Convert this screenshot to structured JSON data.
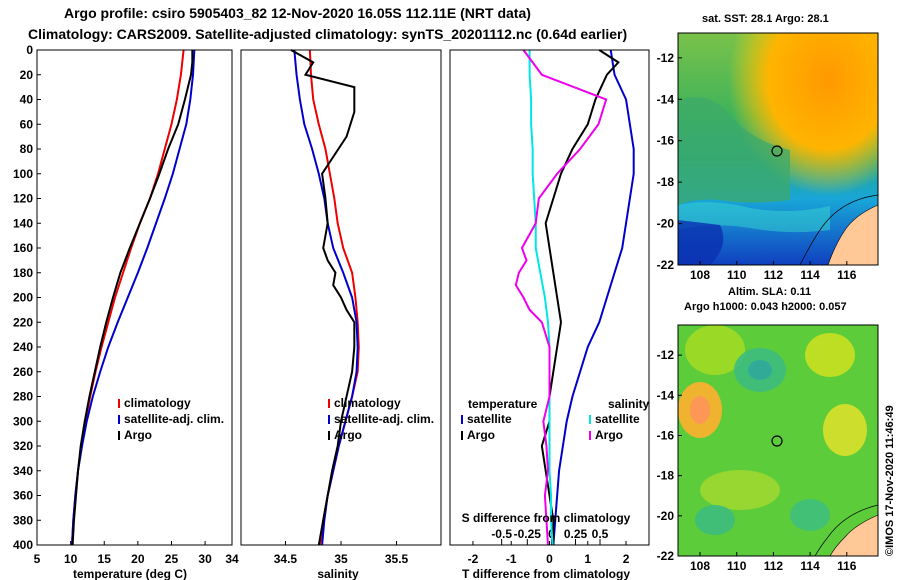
{
  "titles": {
    "line1": "Argo profile: csiro 5905403_82 12-Nov-2020 16.05S 112.11E (NRT data)",
    "line2": "Climatology: CARS2009. Satellite-adjusted climatology: synTS_20201112.nc (0.64d earlier)"
  },
  "map_titles": {
    "sst": "sat. SST: 28.1 Argo: 28.1",
    "sla1": "Altim. SLA: 0.11",
    "sla2": "Argo h1000: 0.043 h2000: 0.057"
  },
  "watermark": "©IMOS 17-Nov-2020 11:46:49",
  "colors": {
    "climatology": "#ee0000",
    "satellite": "#0000cc",
    "argo": "#000000",
    "sat_salinity": "#00e5e5",
    "argo_salinity": "#ee00ee"
  },
  "chart_data": [
    {
      "type": "line",
      "title": "temperature profile",
      "xlabel": "temperature (deg C)",
      "xlim": [
        5,
        34
      ],
      "ylim": [
        400,
        0
      ],
      "xticks": [
        "5",
        "10",
        "15",
        "20",
        "25",
        "30",
        "34"
      ],
      "yticks": [
        "0",
        "20",
        "40",
        "60",
        "80",
        "100",
        "120",
        "140",
        "160",
        "180",
        "200",
        "220",
        "240",
        "260",
        "280",
        "300",
        "320",
        "340",
        "360",
        "380",
        "400"
      ],
      "legend": [
        "climatology",
        "satellite-adj. clim.",
        "Argo"
      ],
      "series": [
        {
          "name": "climatology",
          "depth": [
            0,
            20,
            40,
            60,
            80,
            100,
            120,
            140,
            160,
            180,
            200,
            220,
            240,
            260,
            280,
            300,
            320,
            340,
            360,
            380,
            400
          ],
          "values": [
            26.8,
            26.4,
            25.8,
            25,
            24,
            23,
            21.8,
            20.3,
            19,
            17.8,
            16.6,
            15.6,
            14.6,
            13.7,
            12.9,
            12.2,
            11.6,
            11.1,
            10.7,
            10.4,
            10.2
          ]
        },
        {
          "name": "satellite-adj. clim.",
          "depth": [
            0,
            20,
            40,
            60,
            80,
            100,
            120,
            140,
            160,
            180,
            200,
            220,
            240,
            260,
            280,
            300,
            320,
            340,
            360,
            380,
            400
          ],
          "values": [
            28.4,
            28.2,
            27.8,
            27.2,
            26.2,
            25.2,
            24,
            22.7,
            21.4,
            20,
            18.5,
            17,
            15.6,
            14.4,
            13.3,
            12.4,
            11.7,
            11.1,
            10.7,
            10.4,
            10.2
          ]
        },
        {
          "name": "Argo",
          "depth": [
            0,
            10,
            20,
            40,
            60,
            80,
            100,
            120,
            140,
            160,
            180,
            200,
            220,
            240,
            260,
            280,
            300,
            320,
            340,
            360,
            380,
            400
          ],
          "values": [
            28.1,
            28.1,
            27.9,
            27,
            26,
            24.5,
            23.2,
            21.8,
            20.3,
            18.8,
            17.4,
            16.3,
            15.3,
            14.4,
            13.6,
            12.8,
            12.1,
            11.5,
            11.1,
            10.8,
            10.5,
            10.3
          ]
        }
      ]
    },
    {
      "type": "line",
      "title": "salinity profile",
      "xlabel": "salinity",
      "xlim": [
        34.1,
        35.9
      ],
      "ylim": [
        400,
        0
      ],
      "xticks": [
        "34.5",
        "35",
        "35.5"
      ],
      "legend": [
        "climatology",
        "satellite-adj. clim.",
        "Argo"
      ],
      "series": [
        {
          "name": "climatology",
          "depth": [
            0,
            20,
            40,
            60,
            80,
            100,
            120,
            140,
            160,
            180,
            200,
            220,
            240,
            260,
            280,
            300,
            320,
            340,
            360,
            380,
            400
          ],
          "values": [
            34.72,
            34.73,
            34.75,
            34.8,
            34.86,
            34.9,
            34.94,
            34.97,
            35.02,
            35.1,
            35.13,
            35.15,
            35.16,
            35.15,
            35.1,
            35.04,
            34.98,
            34.93,
            34.88,
            34.84,
            34.81
          ]
        },
        {
          "name": "satellite-adj. clim.",
          "depth": [
            0,
            20,
            40,
            60,
            80,
            100,
            120,
            140,
            160,
            180,
            200,
            220,
            240,
            260,
            280,
            300,
            320,
            340,
            360,
            380,
            400
          ],
          "values": [
            34.58,
            34.6,
            34.63,
            34.67,
            34.74,
            34.8,
            34.85,
            34.88,
            34.93,
            35.02,
            35.1,
            35.14,
            35.15,
            35.14,
            35.1,
            35.04,
            34.98,
            34.93,
            34.88,
            34.85,
            34.83
          ]
        },
        {
          "name": "Argo",
          "depth": [
            0,
            10,
            20,
            30,
            50,
            70,
            100,
            120,
            140,
            160,
            170,
            180,
            190,
            200,
            210,
            220,
            240,
            260,
            280,
            300,
            320,
            340,
            360,
            380,
            400
          ],
          "values": [
            34.55,
            34.75,
            34.68,
            35.12,
            35.12,
            35.05,
            34.83,
            34.86,
            34.88,
            34.84,
            34.88,
            34.95,
            34.93,
            35.0,
            35.05,
            35.12,
            35.12,
            35.1,
            35.05,
            35.0,
            34.97,
            34.92,
            34.88,
            34.84,
            34.8
          ]
        }
      ]
    },
    {
      "type": "line",
      "title": "difference from climatology",
      "xlabel": "T difference from climatology",
      "xlabel_top": "S difference from climatology",
      "xlim": [
        -2.6,
        2.6
      ],
      "ylim": [
        400,
        0
      ],
      "xticks": [
        "-2",
        "-1",
        "0",
        "1",
        "2"
      ],
      "xticks_top": [
        "-0.5",
        "-0.25",
        "0",
        "0.25",
        "0.5"
      ],
      "legend_groups": [
        "temperature",
        "salinity"
      ],
      "legend": [
        "satellite",
        "Argo",
        "satellite",
        "Argo"
      ],
      "series": [
        {
          "name": "T satellite",
          "depth": [
            0,
            20,
            40,
            60,
            80,
            100,
            120,
            140,
            160,
            180,
            200,
            220,
            240,
            260,
            280,
            300,
            320,
            340,
            360,
            380,
            400
          ],
          "values": [
            1.6,
            1.7,
            2.0,
            2.1,
            2.2,
            2.2,
            2.1,
            2.0,
            1.9,
            1.7,
            1.5,
            1.3,
            1.0,
            0.8,
            0.6,
            0.45,
            0.35,
            0.25,
            0.2,
            0.15,
            0.1
          ]
        },
        {
          "name": "T Argo",
          "depth": [
            0,
            10,
            20,
            40,
            60,
            80,
            100,
            120,
            140,
            160,
            180,
            200,
            220,
            240,
            260,
            280,
            300,
            320,
            340,
            360,
            380,
            400
          ],
          "values": [
            1.3,
            1.8,
            1.5,
            1.2,
            1.0,
            0.6,
            0.3,
            0.1,
            -0.1,
            0.0,
            0.1,
            0.2,
            0.3,
            0.2,
            0.1,
            0.0,
            0.0,
            -0.2,
            -0.1,
            0.0,
            0.1,
            0.1
          ]
        },
        {
          "name": "S satellite",
          "depth": [
            0,
            20,
            40,
            60,
            80,
            100,
            120,
            140,
            160,
            180,
            200,
            220,
            240,
            260,
            280,
            300,
            320,
            340,
            360,
            380,
            400
          ],
          "values": [
            -0.13,
            -0.13,
            -0.12,
            -0.12,
            -0.11,
            -0.11,
            -0.1,
            -0.09,
            -0.09,
            -0.06,
            -0.03,
            -0.01,
            0.0,
            0.0,
            0.0,
            0.0,
            0.0,
            0.0,
            0.01,
            0.01,
            0.02
          ]
        },
        {
          "name": "S Argo",
          "depth": [
            0,
            20,
            40,
            60,
            80,
            100,
            120,
            140,
            160,
            170,
            180,
            190,
            200,
            210,
            220,
            240,
            260,
            280,
            300,
            320,
            340,
            360,
            380,
            400
          ],
          "values": [
            -0.17,
            -0.05,
            0.37,
            0.32,
            0.2,
            0.05,
            -0.07,
            -0.09,
            -0.18,
            -0.15,
            -0.2,
            -0.22,
            -0.17,
            -0.13,
            -0.05,
            0.0,
            0.0,
            0.0,
            -0.04,
            -0.02,
            -0.01,
            -0.03,
            -0.02,
            -0.01
          ]
        }
      ]
    },
    {
      "type": "heatmap",
      "title": "sat. SST: 28.1 Argo: 28.1",
      "xlim": [
        106.8,
        117.7
      ],
      "ylim": [
        -22,
        -10.8
      ],
      "xticks": [
        "108",
        "110",
        "112",
        "114",
        "116"
      ],
      "yticks": [
        "-12",
        "-14",
        "-16",
        "-18",
        "-20",
        "-22"
      ],
      "marker": {
        "lon": 112.11,
        "lat": -16.05
      }
    },
    {
      "type": "heatmap",
      "title": "Altim. SLA: 0.11",
      "xlim": [
        106.8,
        117.7
      ],
      "ylim": [
        -22,
        -10.5
      ],
      "xticks": [
        "108",
        "110",
        "112",
        "114",
        "116"
      ],
      "yticks": [
        "-12",
        "-14",
        "-16",
        "-18",
        "-20",
        "-22"
      ],
      "marker": {
        "lon": 112.11,
        "lat": -16.05
      }
    }
  ]
}
